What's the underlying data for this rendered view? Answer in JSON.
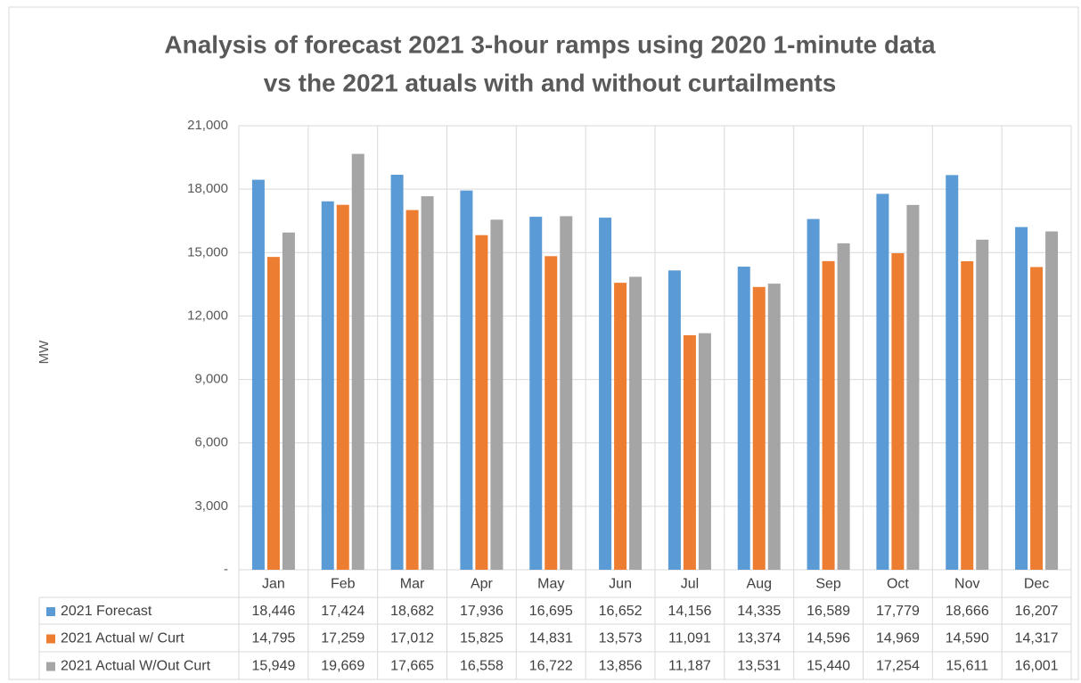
{
  "chart_data": {
    "type": "bar",
    "title": [
      "Analysis of forecast 2021 3-hour ramps using 2020 1-minute data",
      "vs the 2021 atuals with and without curtailments"
    ],
    "y_label": "MW",
    "categories": [
      "Jan",
      "Feb",
      "Mar",
      "Apr",
      "May",
      "Jun",
      "Jul",
      "Aug",
      "Sep",
      "Oct",
      "Nov",
      "Dec"
    ],
    "series": [
      {
        "name": "2021 Forecast",
        "color": "#5b9bd5",
        "values": [
          18446,
          17424,
          18682,
          17936,
          16695,
          16652,
          14156,
          14335,
          16589,
          17779,
          18666,
          16207
        ],
        "value_labels": [
          "18,446",
          "17,424",
          "18,682",
          "17,936",
          "16,695",
          "16,652",
          "14,156",
          "14,335",
          "16,589",
          "17,779",
          "18,666",
          "16,207"
        ]
      },
      {
        "name": "2021 Actual w/ Curt",
        "color": "#ed7d31",
        "values": [
          14795,
          17259,
          17012,
          15825,
          14831,
          13573,
          11091,
          13374,
          14596,
          14969,
          14590,
          14317
        ],
        "value_labels": [
          "14,795",
          "17,259",
          "17,012",
          "15,825",
          "14,831",
          "13,573",
          "11,091",
          "13,374",
          "14,596",
          "14,969",
          "14,590",
          "14,317"
        ]
      },
      {
        "name": "2021 Actual W/Out Curt",
        "color": "#a5a5a5",
        "values": [
          15949,
          19669,
          17665,
          16558,
          16722,
          13856,
          11187,
          13531,
          15440,
          17254,
          15611,
          16001
        ],
        "value_labels": [
          "15,949",
          "19,669",
          "17,665",
          "16,558",
          "16,722",
          "13,856",
          "11,187",
          "13,531",
          "15,440",
          "17,254",
          "15,611",
          "16,001"
        ]
      }
    ],
    "ylim": [
      0,
      21000
    ],
    "yticks": [
      {
        "value": 0,
        "label": "-"
      },
      {
        "value": 3000,
        "label": "3,000"
      },
      {
        "value": 6000,
        "label": "6,000"
      },
      {
        "value": 9000,
        "label": "9,000"
      },
      {
        "value": 12000,
        "label": "12,000"
      },
      {
        "value": 15000,
        "label": "15,000"
      },
      {
        "value": 18000,
        "label": "18,000"
      },
      {
        "value": 21000,
        "label": "21,000"
      }
    ],
    "grid": true
  }
}
